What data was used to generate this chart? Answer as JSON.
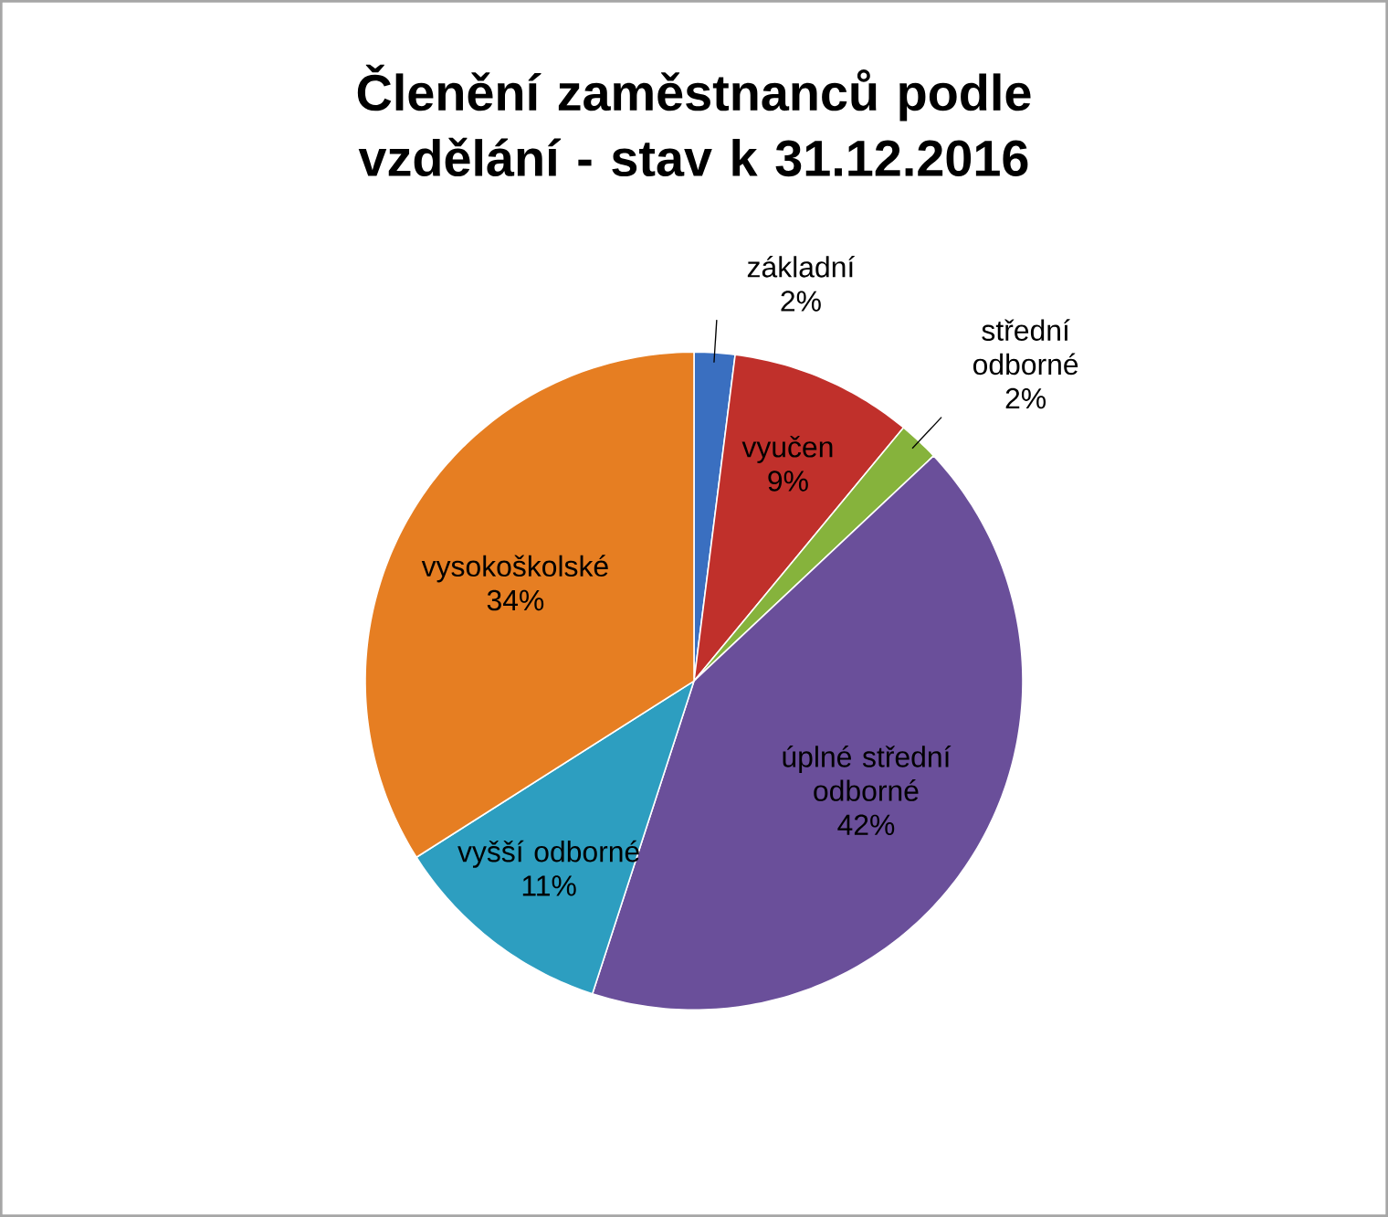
{
  "chart_data": {
    "type": "pie",
    "title": "Členění zaměstnanců podle vzdělání  - stav k 31.12.2016",
    "categories": [
      "základní",
      "vyučen",
      "střední odborné",
      "úplné střední odborné",
      "vyšší odborné",
      "vysokoškolské"
    ],
    "values": [
      2,
      9,
      2,
      42,
      11,
      34
    ],
    "value_labels": [
      "2%",
      "9%",
      "2%",
      "42%",
      "11%",
      "34%"
    ],
    "colors": [
      "#3a6fc0",
      "#c0302b",
      "#86b33c",
      "#6a4f9a",
      "#2d9ec0",
      "#e67e22"
    ]
  }
}
